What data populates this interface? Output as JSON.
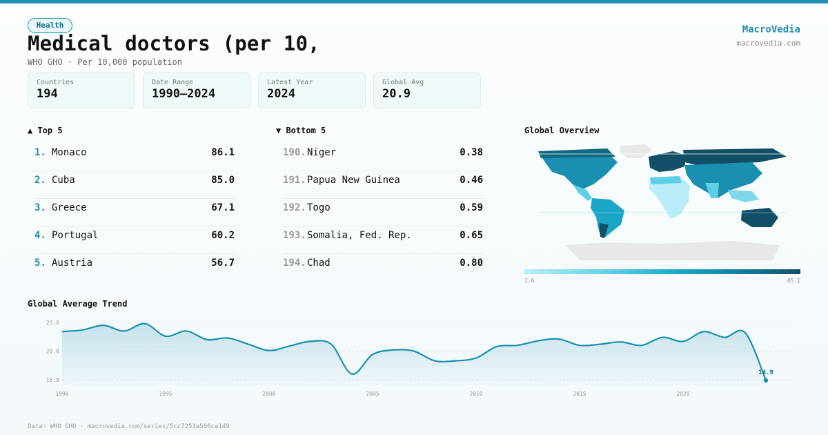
{
  "header": {
    "badge": "Health",
    "title": "Medical doctors (per 10,",
    "subtitle": "WHO GHO · Per 10,000 population",
    "brand": "MacroVedia",
    "brand_url": "macrovedia.com"
  },
  "stats": [
    {
      "label": "Countries",
      "value": "194"
    },
    {
      "label": "Date Range",
      "value": "1990–2024"
    },
    {
      "label": "Latest Year",
      "value": "2024"
    },
    {
      "label": "Global Avg",
      "value": "20.9"
    }
  ],
  "top": {
    "title": "▲ Top 5",
    "items": [
      {
        "rank": "1.",
        "name": "Monaco",
        "value": "86.1"
      },
      {
        "rank": "2.",
        "name": "Cuba",
        "value": "85.0"
      },
      {
        "rank": "3.",
        "name": "Greece",
        "value": "67.1"
      },
      {
        "rank": "4.",
        "name": "Portugal",
        "value": "60.2"
      },
      {
        "rank": "5.",
        "name": "Austria",
        "value": "56.7"
      }
    ]
  },
  "bottom": {
    "title": "▼ Bottom 5",
    "items": [
      {
        "rank": "190.",
        "name": "Niger",
        "value": "0.38"
      },
      {
        "rank": "191.",
        "name": "Papua New Guinea",
        "value": "0.46"
      },
      {
        "rank": "192.",
        "name": "Togo",
        "value": "0.59"
      },
      {
        "rank": "193.",
        "name": "Somalia, Fed. Rep.",
        "value": "0.65"
      },
      {
        "rank": "194.",
        "name": "Chad",
        "value": "0.80"
      }
    ]
  },
  "map": {
    "title": "Global Overview",
    "legend_min": "1.6",
    "legend_max": "45.1",
    "colors": {
      "low": "#b9eef8",
      "mid": "#1aa6c6",
      "high": "#124f66",
      "nodata": "#e6e8ea"
    }
  },
  "chart_data": {
    "type": "area",
    "title": "Global Average Trend",
    "x": [
      1990,
      1991,
      1992,
      1993,
      1994,
      1995,
      1996,
      1997,
      1998,
      1999,
      2000,
      2001,
      2002,
      2003,
      2004,
      2005,
      2006,
      2007,
      2008,
      2009,
      2010,
      2011,
      2012,
      2013,
      2014,
      2015,
      2016,
      2017,
      2018,
      2019,
      2020,
      2021,
      2022,
      2023,
      2024
    ],
    "values": [
      23.4,
      23.7,
      24.5,
      23.5,
      24.8,
      22.6,
      23.5,
      22.0,
      22.3,
      21.2,
      20.1,
      20.9,
      21.7,
      21.2,
      16.0,
      19.4,
      20.2,
      20.0,
      18.3,
      18.3,
      18.8,
      20.8,
      21.0,
      21.8,
      22.1,
      21.0,
      21.2,
      21.6,
      21.0,
      22.4,
      21.7,
      23.4,
      22.4,
      23.2,
      14.9
    ],
    "yticks": [
      15.0,
      20.0,
      25.0
    ],
    "ytick_labels": [
      "15.0",
      "20.0",
      "25.0"
    ],
    "xticks": [
      1990,
      1995,
      2000,
      2005,
      2010,
      2015,
      2020
    ],
    "xtick_labels": [
      "1990",
      "1995",
      "2000",
      "2005",
      "2010",
      "2015",
      "2020"
    ],
    "ylim": [
      15.0,
      25.0
    ],
    "last_label": "14.9",
    "color": "#1b8fae",
    "grid": true
  },
  "footer": "Data: WHO GHO · macrovedia.com/series/5cc7253a586ca1d9"
}
